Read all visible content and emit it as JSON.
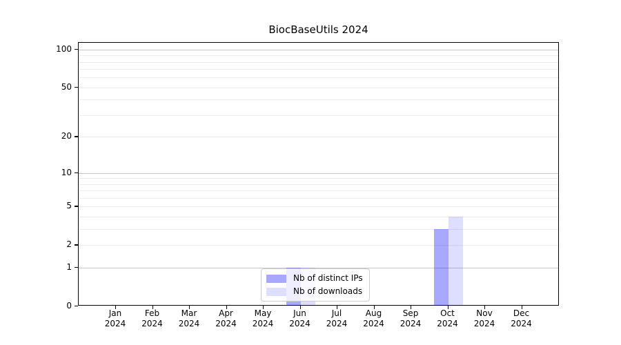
{
  "figure": {
    "title": "BiocBaseUtils 2024"
  },
  "chart_data": {
    "type": "bar",
    "title": "BiocBaseUtils 2024",
    "categories": [
      "Jan",
      "Feb",
      "Mar",
      "Apr",
      "May",
      "Jun",
      "Jul",
      "Aug",
      "Sep",
      "Oct",
      "Nov",
      "Dec"
    ],
    "year_label": "2024",
    "series": [
      {
        "name": "Nb of distinct IPs",
        "color": "#0000ff",
        "alpha": 0.34,
        "values": [
          0,
          0,
          0,
          0,
          0,
          1,
          0,
          0,
          0,
          3,
          0,
          0
        ]
      },
      {
        "name": "Nb of downloads",
        "color": "#0000ff",
        "alpha": 0.13,
        "values": [
          0,
          0,
          0,
          0,
          0,
          1,
          0,
          0,
          0,
          4,
          0,
          0
        ]
      }
    ],
    "xlabel": "",
    "ylabel": "",
    "yscale": "log1p",
    "ylim": [
      0,
      113
    ],
    "ytick_values": [
      0,
      1,
      2,
      5,
      10,
      20,
      50,
      100
    ],
    "grid_major_values": [
      1,
      10,
      100
    ],
    "grid_minor_values": [
      2,
      3,
      4,
      5,
      6,
      7,
      8,
      9,
      20,
      30,
      40,
      50,
      60,
      70,
      80,
      90
    ],
    "grid": "on",
    "legend_position": "lower center"
  },
  "colors": {
    "background": "#ffffff",
    "axis": "#000000",
    "grid_major": "#c8c8c8",
    "grid_minor": "#ebebeb",
    "legend_border": "#cccccc",
    "bar_distinct_ips_rendered": "#aaaaff",
    "bar_downloads_rendered": "#dedeff"
  }
}
